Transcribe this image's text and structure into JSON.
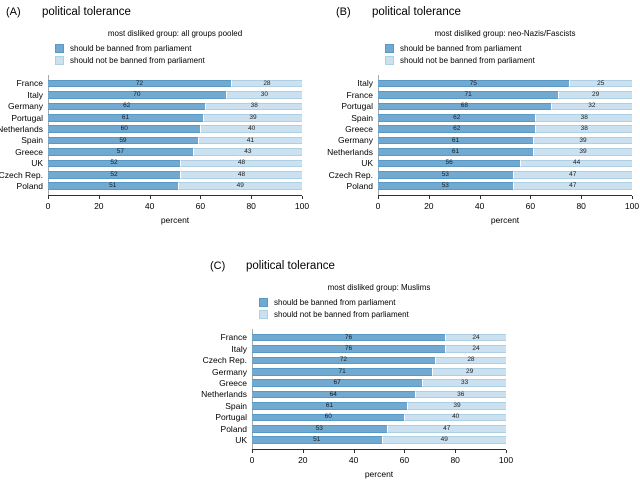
{
  "colors": {
    "banned": "#72a9d1",
    "banned_border": "#579ac7",
    "not_banned": "#cbe1ef",
    "not_banned_border": "#aed0e4",
    "axis_line": "#303030",
    "y_line": "#a9a9a9"
  },
  "legend": {
    "banned": "should be banned from parliament",
    "not_banned": "should not be banned from parliament"
  },
  "axis": {
    "label": "percent",
    "ticks": [
      0,
      20,
      40,
      60,
      80,
      100
    ],
    "range": [
      0,
      100
    ]
  },
  "chart_data": [
    {
      "panel_label": "(A)",
      "title": "political tolerance",
      "subtitle": "most disliked group: all groups pooled",
      "type": "bar",
      "orientation": "horizontal",
      "stacked": true,
      "grid": false,
      "legend_position": "top-left",
      "xlabel": "percent",
      "xlim": [
        0,
        100
      ],
      "categories": [
        "France",
        "Italy",
        "Germany",
        "Portugal",
        "Netherlands",
        "Spain",
        "Greece",
        "UK",
        "Czech Rep.",
        "Poland"
      ],
      "series": [
        {
          "name": "should be banned from parliament",
          "values": [
            72,
            70,
            62,
            61,
            60,
            59,
            57,
            52,
            52,
            51
          ]
        },
        {
          "name": "should not be banned from parliament",
          "values": [
            28,
            30,
            38,
            39,
            40,
            41,
            43,
            48,
            48,
            49
          ]
        }
      ]
    },
    {
      "panel_label": "(B)",
      "title": "political tolerance",
      "subtitle": "most disliked group: neo-Nazis/Fascists",
      "type": "bar",
      "orientation": "horizontal",
      "stacked": true,
      "grid": false,
      "legend_position": "top-left",
      "xlabel": "percent",
      "xlim": [
        0,
        100
      ],
      "categories": [
        "Italy",
        "France",
        "Portugal",
        "Spain",
        "Greece",
        "Germany",
        "Netherlands",
        "UK",
        "Czech Rep.",
        "Poland"
      ],
      "series": [
        {
          "name": "should be banned from parliament",
          "values": [
            75,
            71,
            68,
            62,
            62,
            61,
            61,
            56,
            53,
            53
          ]
        },
        {
          "name": "should not be banned from parliament",
          "values": [
            25,
            29,
            32,
            38,
            38,
            39,
            39,
            44,
            47,
            47
          ]
        }
      ]
    },
    {
      "panel_label": "(C)",
      "title": "political tolerance",
      "subtitle": "most disliked group: Muslims",
      "type": "bar",
      "orientation": "horizontal",
      "stacked": true,
      "grid": false,
      "legend_position": "top-left",
      "xlabel": "percent",
      "xlim": [
        0,
        100
      ],
      "categories": [
        "France",
        "Italy",
        "Czech Rep.",
        "Germany",
        "Greece",
        "Netherlands",
        "Spain",
        "Portugal",
        "Poland",
        "UK"
      ],
      "series": [
        {
          "name": "should be banned from parliament",
          "values": [
            76,
            76,
            72,
            71,
            67,
            64,
            61,
            60,
            53,
            51
          ]
        },
        {
          "name": "should not be banned from parliament",
          "values": [
            24,
            24,
            28,
            29,
            33,
            36,
            39,
            40,
            47,
            49
          ]
        }
      ]
    }
  ]
}
